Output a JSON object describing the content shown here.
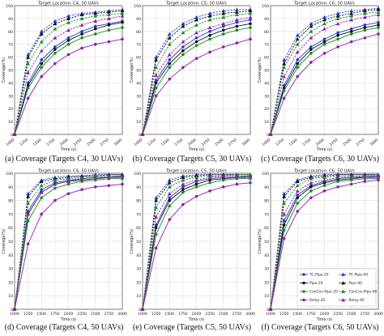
{
  "chart_data": [
    {
      "type": "line",
      "title": "Target Location: C4, 30 UAVs",
      "caption": "(a) Coverage (Targets C4, 30 UAVs)",
      "xlabel": "Time (s)",
      "ylabel": "Coverage(%)",
      "xlim": [
        1000,
        3000
      ],
      "ylim": [
        0,
        100
      ],
      "x_ticks": [
        1000,
        1250,
        1500,
        1750,
        2000,
        2250,
        2500,
        2750,
        3000
      ],
      "y_ticks": [
        0,
        10,
        20,
        30,
        40,
        50,
        60,
        70,
        80,
        90,
        100
      ],
      "grid": true,
      "x": [
        1000,
        1250,
        1500,
        1750,
        2000,
        2250,
        2500,
        2750,
        3000
      ],
      "series": [
        {
          "name": "TC-Pipe-20",
          "values": [
            0,
            40,
            58,
            68,
            75,
            80,
            84,
            86,
            88
          ]
        },
        {
          "name": "Pipe-20",
          "values": [
            0,
            38,
            55,
            66,
            73,
            78,
            82,
            85,
            87
          ]
        },
        {
          "name": "ConCov-Pipe-20",
          "values": [
            0,
            36,
            52,
            63,
            70,
            75,
            78,
            81,
            83
          ]
        },
        {
          "name": "Relay-20",
          "values": [
            0,
            28,
            45,
            55,
            62,
            67,
            70,
            72,
            74
          ]
        },
        {
          "name": "TC-Pipe-40",
          "values": [
            0,
            62,
            80,
            88,
            92,
            94,
            95,
            96,
            97
          ]
        },
        {
          "name": "Pipe-40",
          "values": [
            0,
            60,
            78,
            86,
            90,
            93,
            94,
            95,
            96
          ]
        },
        {
          "name": "ConCov-Pipe-40",
          "values": [
            0,
            55,
            72,
            82,
            87,
            90,
            92,
            93,
            94
          ]
        },
        {
          "name": "Relay-40",
          "values": [
            0,
            48,
            65,
            75,
            81,
            85,
            88,
            90,
            92
          ]
        }
      ]
    },
    {
      "type": "line",
      "title": "Target Location: C5, 30 UAVs",
      "caption": "(b) Coverage (Targets C5, 30 UAVs)",
      "xlabel": "Time (s)",
      "ylabel": "Coverage(%)",
      "xlim": [
        1000,
        3000
      ],
      "ylim": [
        0,
        100
      ],
      "x_ticks": [
        1000,
        1250,
        1500,
        1750,
        2000,
        2250,
        2500,
        2750,
        3000
      ],
      "y_ticks": [
        0,
        10,
        20,
        30,
        40,
        50,
        60,
        70,
        80,
        90,
        100
      ],
      "grid": true,
      "x": [
        1000,
        1250,
        1500,
        1750,
        2000,
        2250,
        2500,
        2750,
        3000
      ],
      "series": [
        {
          "name": "TC-Pipe-20",
          "values": [
            0,
            42,
            58,
            68,
            75,
            80,
            84,
            87,
            89
          ]
        },
        {
          "name": "Pipe-20",
          "values": [
            0,
            40,
            55,
            65,
            72,
            77,
            81,
            84,
            86
          ]
        },
        {
          "name": "ConCov-Pipe-20",
          "values": [
            0,
            36,
            52,
            62,
            69,
            74,
            78,
            81,
            83
          ]
        },
        {
          "name": "Relay-20",
          "values": [
            0,
            30,
            43,
            52,
            59,
            64,
            68,
            71,
            74
          ]
        },
        {
          "name": "TC-Pipe-40",
          "values": [
            0,
            60,
            78,
            86,
            91,
            94,
            96,
            97,
            97
          ]
        },
        {
          "name": "Pipe-40",
          "values": [
            0,
            58,
            75,
            84,
            89,
            92,
            94,
            95,
            96
          ]
        },
        {
          "name": "ConCov-Pipe-40",
          "values": [
            0,
            52,
            70,
            79,
            85,
            89,
            91,
            93,
            94
          ]
        },
        {
          "name": "Relay-40",
          "values": [
            0,
            46,
            62,
            72,
            79,
            83,
            86,
            89,
            91
          ]
        }
      ]
    },
    {
      "type": "line",
      "title": "Target Location: C6, 30 UAVs",
      "caption": "(c) Coverage (Targets C6, 30 UAVs)",
      "xlabel": "Time (s)",
      "ylabel": "Coverage(%)",
      "xlim": [
        1000,
        3000
      ],
      "ylim": [
        0,
        100
      ],
      "x_ticks": [
        1000,
        1250,
        1500,
        1750,
        2000,
        2250,
        2500,
        2750,
        3000
      ],
      "y_ticks": [
        0,
        10,
        20,
        30,
        40,
        50,
        60,
        70,
        80,
        90,
        100
      ],
      "grid": true,
      "x": [
        1000,
        1250,
        1500,
        1750,
        2000,
        2250,
        2500,
        2750,
        3000
      ],
      "series": [
        {
          "name": "TC-Pipe-20",
          "values": [
            0,
            38,
            58,
            68,
            74,
            79,
            82,
            85,
            87
          ]
        },
        {
          "name": "Pipe-20",
          "values": [
            0,
            36,
            55,
            66,
            72,
            77,
            80,
            83,
            85
          ]
        },
        {
          "name": "ConCov-Pipe-20",
          "values": [
            0,
            34,
            52,
            63,
            70,
            74,
            78,
            81,
            83
          ]
        },
        {
          "name": "Relay-20",
          "values": [
            0,
            28,
            45,
            56,
            63,
            68,
            72,
            75,
            78
          ]
        },
        {
          "name": "TC-Pipe-40",
          "values": [
            0,
            58,
            77,
            86,
            91,
            94,
            96,
            97,
            98
          ]
        },
        {
          "name": "Pipe-40",
          "values": [
            0,
            55,
            74,
            84,
            89,
            92,
            94,
            96,
            97
          ]
        },
        {
          "name": "ConCov-Pipe-40",
          "values": [
            0,
            52,
            70,
            80,
            86,
            90,
            92,
            94,
            95
          ]
        },
        {
          "name": "Relay-40",
          "values": [
            0,
            45,
            64,
            75,
            82,
            86,
            89,
            91,
            93
          ]
        }
      ]
    },
    {
      "type": "line",
      "title": "Target Location: C4, 50 UAVs",
      "caption": "(d) Coverage (Targets C4, 50 UAVs)",
      "xlabel": "Time (s)",
      "ylabel": "Coverage(%)",
      "xlim": [
        1000,
        3000
      ],
      "ylim": [
        0,
        100
      ],
      "x_ticks": [
        1000,
        1250,
        1500,
        1750,
        2000,
        2250,
        2500,
        2750,
        3000
      ],
      "y_ticks": [
        0,
        10,
        20,
        30,
        40,
        50,
        60,
        70,
        80,
        90,
        100
      ],
      "grid": true,
      "x": [
        1000,
        1250,
        1500,
        1750,
        2000,
        2250,
        2500,
        2750,
        3000
      ],
      "series": [
        {
          "name": "TC-Pipe-20",
          "values": [
            0,
            72,
            88,
            93,
            95,
            96,
            97,
            97,
            98
          ]
        },
        {
          "name": "Pipe-20",
          "values": [
            0,
            70,
            86,
            92,
            94,
            95,
            96,
            97,
            97
          ]
        },
        {
          "name": "ConCov-Pipe-20",
          "values": [
            0,
            65,
            82,
            89,
            92,
            94,
            95,
            96,
            96
          ]
        },
        {
          "name": "Relay-20",
          "values": [
            0,
            48,
            70,
            80,
            85,
            88,
            90,
            91,
            92
          ]
        },
        {
          "name": "TC-Pipe-40",
          "values": [
            0,
            85,
            95,
            97,
            98,
            98,
            99,
            99,
            99
          ]
        },
        {
          "name": "Pipe-40",
          "values": [
            0,
            83,
            94,
            96,
            97,
            98,
            98,
            99,
            99
          ]
        },
        {
          "name": "ConCov-Pipe-40",
          "values": [
            0,
            78,
            91,
            95,
            96,
            97,
            98,
            98,
            98
          ]
        },
        {
          "name": "Relay-40",
          "values": [
            0,
            70,
            86,
            92,
            94,
            96,
            97,
            97,
            98
          ]
        }
      ]
    },
    {
      "type": "line",
      "title": "Target Location: C5, 50 UAVs",
      "caption": "(e) Coverage (Targets C5, 50 UAVs)",
      "xlabel": "Time (s)",
      "ylabel": "Coverage(%)",
      "xlim": [
        1000,
        3000
      ],
      "ylim": [
        0,
        100
      ],
      "x_ticks": [
        1000,
        1250,
        1500,
        1750,
        2000,
        2250,
        2500,
        2750,
        3000
      ],
      "y_ticks": [
        0,
        10,
        20,
        30,
        40,
        50,
        60,
        70,
        80,
        90,
        100
      ],
      "grid": true,
      "x": [
        1000,
        1250,
        1500,
        1750,
        2000,
        2250,
        2500,
        2750,
        3000
      ],
      "series": [
        {
          "name": "TC-Pipe-20",
          "values": [
            0,
            62,
            82,
            90,
            94,
            96,
            97,
            97,
            98
          ]
        },
        {
          "name": "Pipe-20",
          "values": [
            0,
            60,
            80,
            88,
            92,
            95,
            96,
            97,
            97
          ]
        },
        {
          "name": "ConCov-Pipe-20",
          "values": [
            0,
            55,
            76,
            86,
            90,
            93,
            95,
            96,
            96
          ]
        },
        {
          "name": "Relay-20",
          "values": [
            0,
            45,
            66,
            77,
            83,
            87,
            90,
            92,
            93
          ]
        },
        {
          "name": "TC-Pipe-40",
          "values": [
            0,
            82,
            95,
            98,
            99,
            99,
            99,
            99,
            99
          ]
        },
        {
          "name": "Pipe-40",
          "values": [
            0,
            80,
            93,
            97,
            98,
            99,
            99,
            99,
            99
          ]
        },
        {
          "name": "ConCov-Pipe-40",
          "values": [
            0,
            75,
            90,
            95,
            97,
            98,
            98,
            99,
            99
          ]
        },
        {
          "name": "Relay-40",
          "values": [
            0,
            68,
            85,
            92,
            95,
            97,
            98,
            98,
            98
          ]
        }
      ]
    },
    {
      "type": "line",
      "title": "Target Location: C6, 50 UAVs",
      "caption": "(f) Coverage (Targets C6, 50 UAVs)",
      "xlabel": "Time (s)",
      "ylabel": "Coverage(%)",
      "xlim": [
        1000,
        3000
      ],
      "ylim": [
        0,
        100
      ],
      "x_ticks": [
        1000,
        1250,
        1500,
        1750,
        2000,
        2250,
        2500,
        2750,
        3000
      ],
      "y_ticks": [
        0,
        10,
        20,
        30,
        40,
        50,
        60,
        70,
        80,
        90,
        100
      ],
      "grid": true,
      "legend": "bottom-right",
      "x": [
        1000,
        1250,
        1500,
        1750,
        2000,
        2250,
        2500,
        2750,
        3000
      ],
      "series": [
        {
          "name": "TC-Pipe-20",
          "values": [
            0,
            65,
            84,
            91,
            94,
            96,
            97,
            97,
            98
          ]
        },
        {
          "name": "Pipe-20",
          "values": [
            0,
            62,
            82,
            90,
            93,
            95,
            96,
            97,
            97
          ]
        },
        {
          "name": "ConCov-Pipe-20",
          "values": [
            0,
            58,
            78,
            87,
            91,
            94,
            95,
            96,
            96
          ]
        },
        {
          "name": "Relay-20",
          "values": [
            0,
            52,
            72,
            82,
            87,
            90,
            92,
            94,
            95
          ]
        },
        {
          "name": "TC-Pipe-40",
          "values": [
            0,
            85,
            95,
            98,
            99,
            99,
            99,
            99,
            99
          ]
        },
        {
          "name": "Pipe-40",
          "values": [
            0,
            83,
            94,
            97,
            98,
            99,
            99,
            99,
            99
          ]
        },
        {
          "name": "ConCov-Pipe-40",
          "values": [
            0,
            78,
            91,
            96,
            97,
            98,
            98,
            98,
            99
          ]
        },
        {
          "name": "Relay-40",
          "values": [
            0,
            70,
            87,
            93,
            95,
            97,
            97,
            98,
            98
          ]
        }
      ]
    }
  ],
  "series_style": [
    {
      "color": "#1f3fd0",
      "dash": "solid",
      "marker": "circle"
    },
    {
      "color": "#111111",
      "dash": "solid",
      "marker": "circle"
    },
    {
      "color": "#1a8a2a",
      "dash": "solid",
      "marker": "circle"
    },
    {
      "color": "#8e1fa8",
      "dash": "solid",
      "marker": "circle"
    },
    {
      "color": "#1f3fd0",
      "dash": "dashed",
      "marker": "triangle"
    },
    {
      "color": "#111111",
      "dash": "dashed",
      "marker": "triangle"
    },
    {
      "color": "#1a8a2a",
      "dash": "dashed",
      "marker": "triangle"
    },
    {
      "color": "#8e1fa8",
      "dash": "dashed",
      "marker": "triangle"
    }
  ]
}
